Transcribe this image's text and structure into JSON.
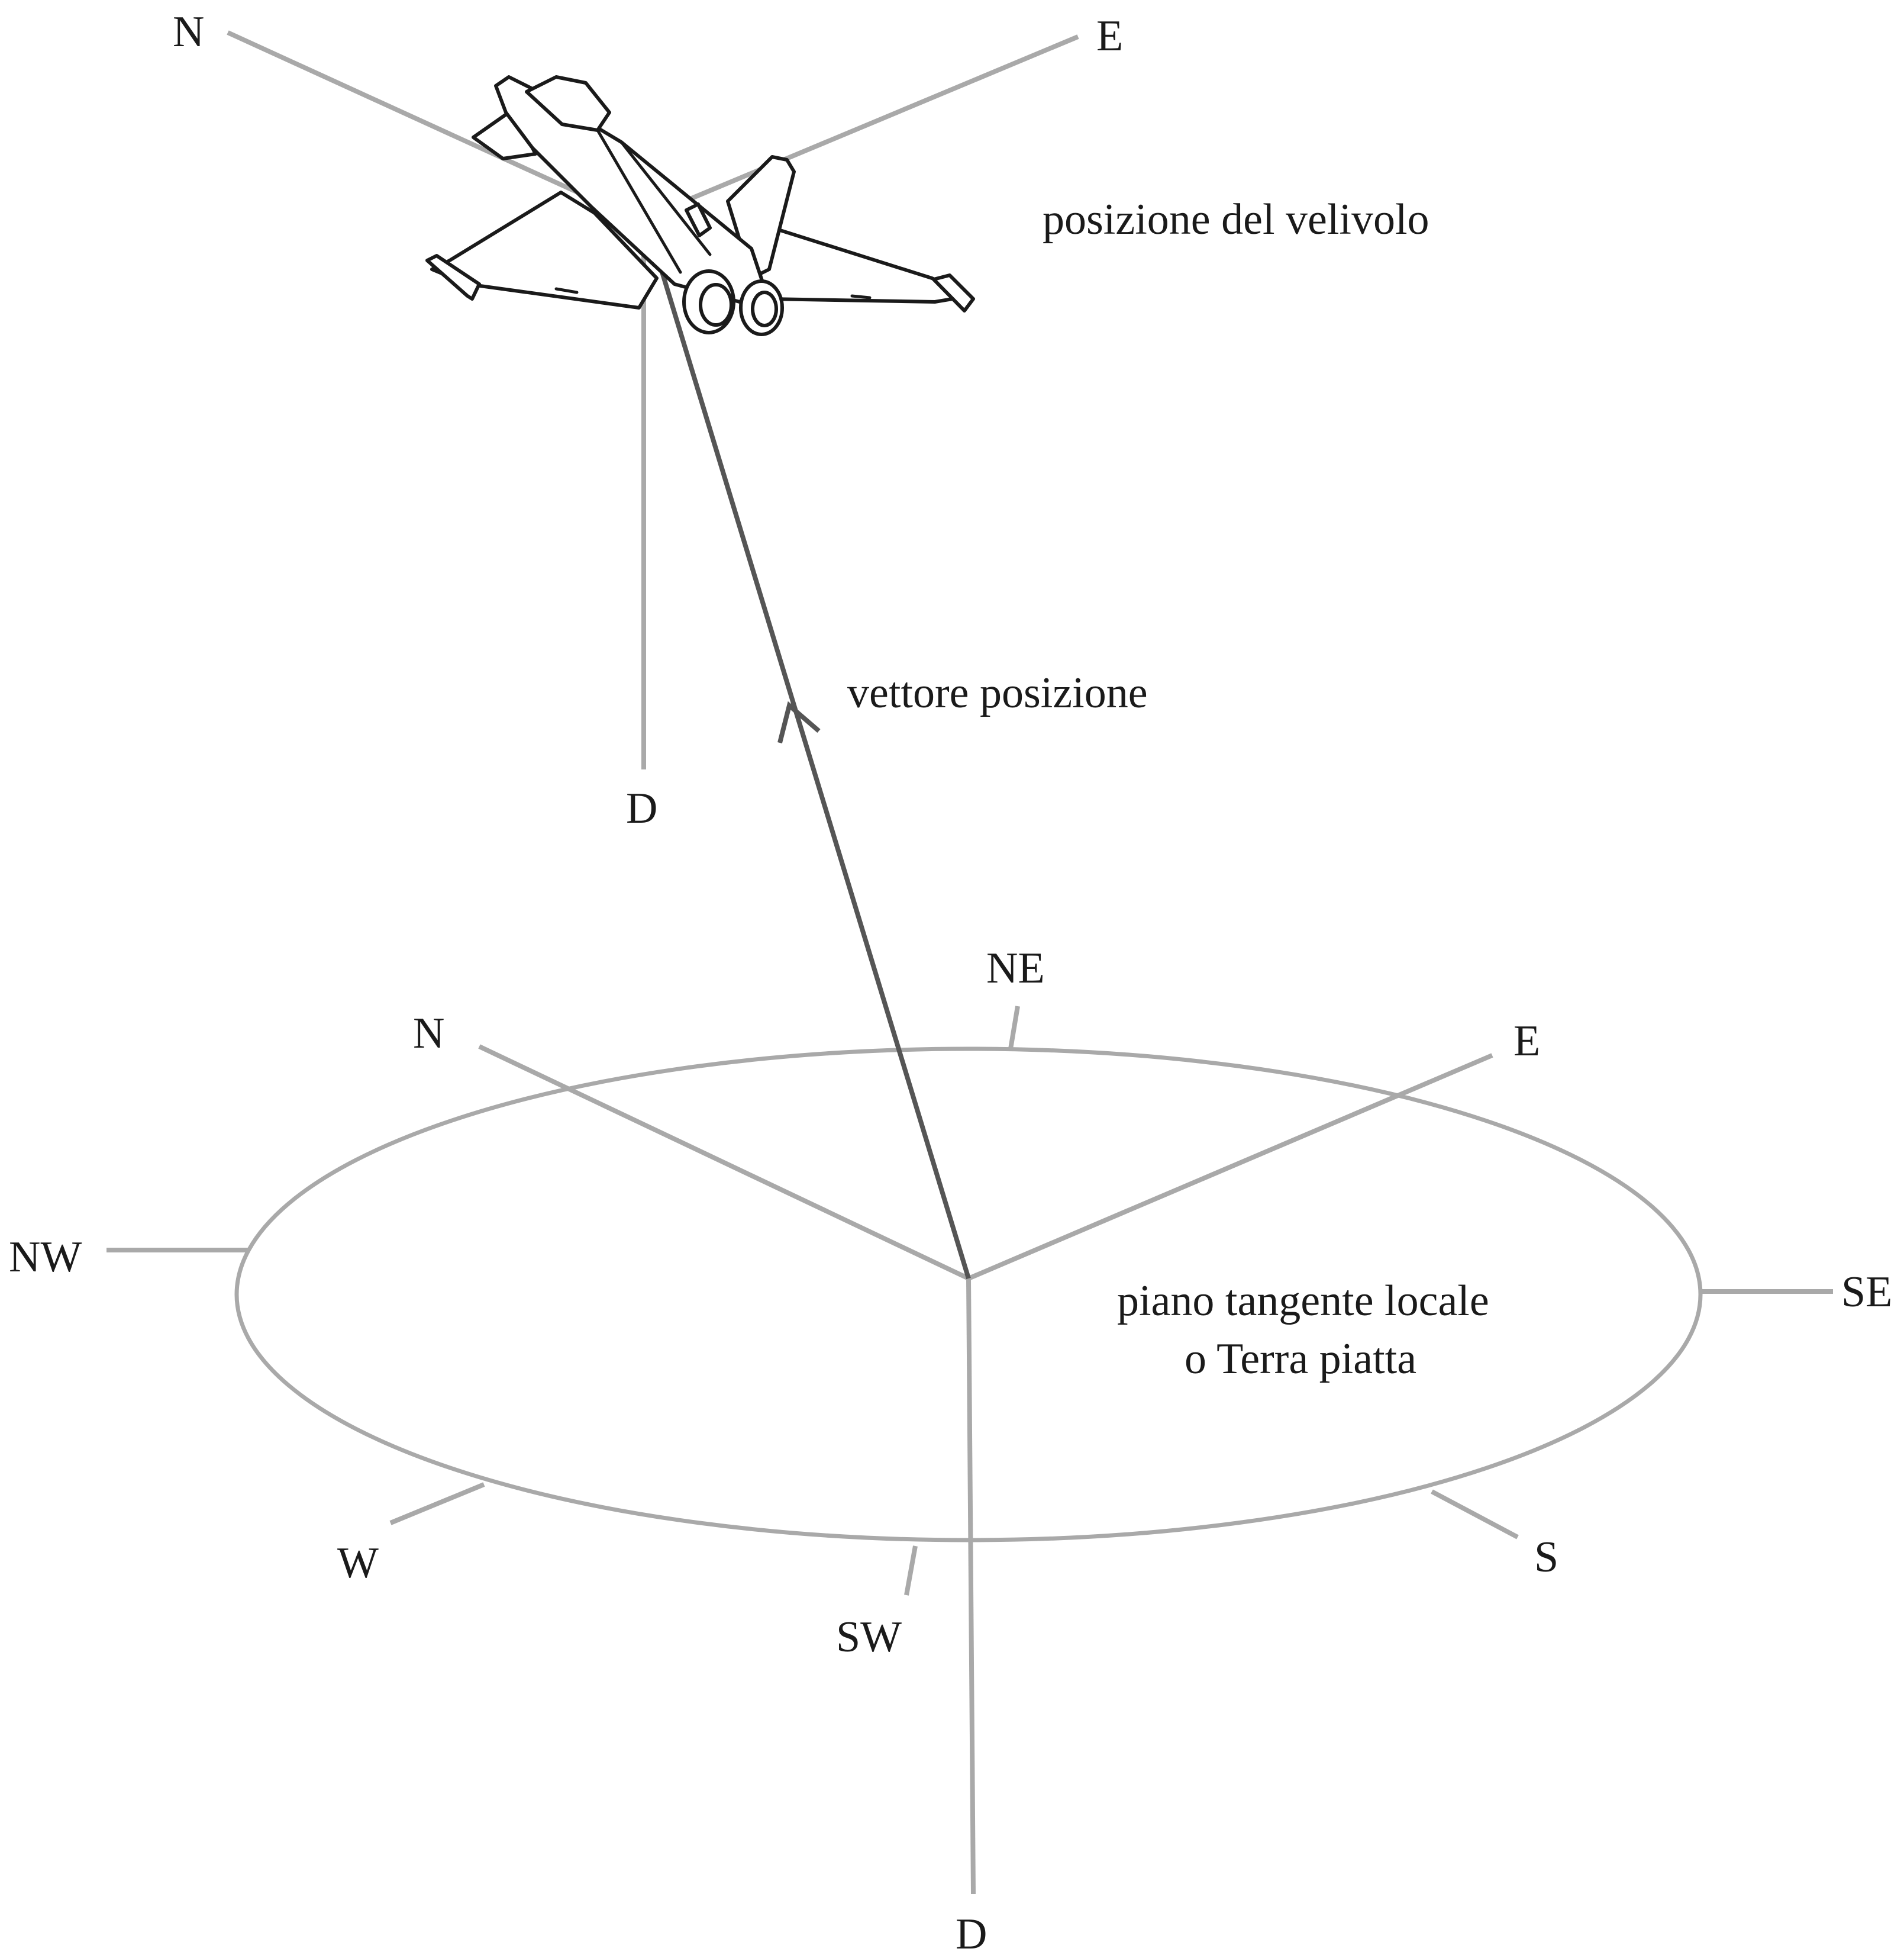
{
  "aircraft_frame": {
    "north_label": "N",
    "east_label": "E",
    "down_label": "D",
    "caption": "posizione del velivolo"
  },
  "position_vector": {
    "label": "vettore posizione"
  },
  "ground_frame": {
    "north_label": "N",
    "east_label": "E",
    "down_label": "D",
    "plane_caption_line1": "piano tangente locale",
    "plane_caption_line2": "o Terra piatta"
  },
  "compass": {
    "ne": "NE",
    "nw": "NW",
    "se": "SE",
    "w": "W",
    "sw": "SW",
    "s": "S"
  },
  "colors": {
    "axis_gray": "#a9a9a9",
    "vector_gray": "#555555",
    "text": "#1a1a1a"
  },
  "icons": {
    "aircraft": "jet-aircraft-icon"
  }
}
